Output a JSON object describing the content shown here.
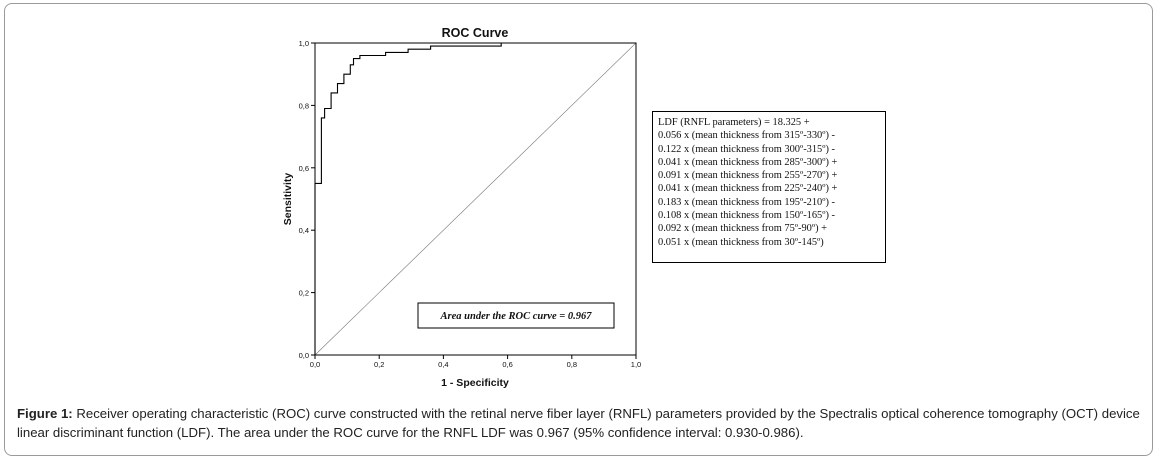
{
  "chart_data": {
    "type": "line",
    "title": "ROC Curve",
    "xlabel": "1 - Specificity",
    "ylabel": "Sensitivity",
    "xlim": [
      0,
      1
    ],
    "ylim": [
      0,
      1
    ],
    "x_ticks": [
      "0,0",
      "0,2",
      "0,4",
      "0,6",
      "0,8",
      "1,0"
    ],
    "y_ticks": [
      "0,0",
      "0,2",
      "0,4",
      "0,6",
      "0,8",
      "1,0"
    ],
    "grid": false,
    "series": [
      {
        "x": [
          0.0,
          0.0,
          0.02,
          0.02,
          0.03,
          0.03,
          0.05,
          0.05,
          0.07,
          0.07,
          0.09,
          0.09,
          0.11,
          0.11,
          0.12,
          0.12,
          0.14,
          0.14,
          0.22,
          0.22,
          0.29,
          0.29,
          0.36,
          0.36,
          0.58,
          0.58,
          1.0
        ],
        "y": [
          0.0,
          0.55,
          0.55,
          0.76,
          0.76,
          0.79,
          0.79,
          0.84,
          0.84,
          0.87,
          0.87,
          0.9,
          0.9,
          0.93,
          0.93,
          0.95,
          0.95,
          0.96,
          0.96,
          0.97,
          0.97,
          0.98,
          0.98,
          0.99,
          0.99,
          1.0,
          1.0
        ]
      }
    ],
    "annotation": "Area under the ROC curve = 0.967"
  },
  "formula_lines": [
    "LDF (RNFL parameters) = 18.325 +",
    "0.056 x (mean thickness from 315º-330º) -",
    "0.122 x (mean thickness from 300º-315º) -",
    "0.041 x (mean thickness from 285º-300º) +",
    "0.091 x (mean thickness from 255º-270º) +",
    "0.041 x (mean thickness from 225º-240º) +",
    "0.183 x (mean thickness from 195º-210º) -",
    "0.108 x (mean thickness from 150º-165º) -",
    "0.092 x (mean thickness from 75º-90º) +",
    "0.051 x (mean thickness from 30º-145º)"
  ],
  "caption": {
    "label": "Figure 1:",
    "text": " Receiver operating characteristic (ROC) curve constructed with the retinal nerve fiber layer (RNFL) parameters provided by the Spectralis optical coherence tomography (OCT) device linear discriminant function (LDF). The area under the ROC curve for the RNFL LDF was 0.967 (95% confidence interval: 0.930-0.986)."
  }
}
